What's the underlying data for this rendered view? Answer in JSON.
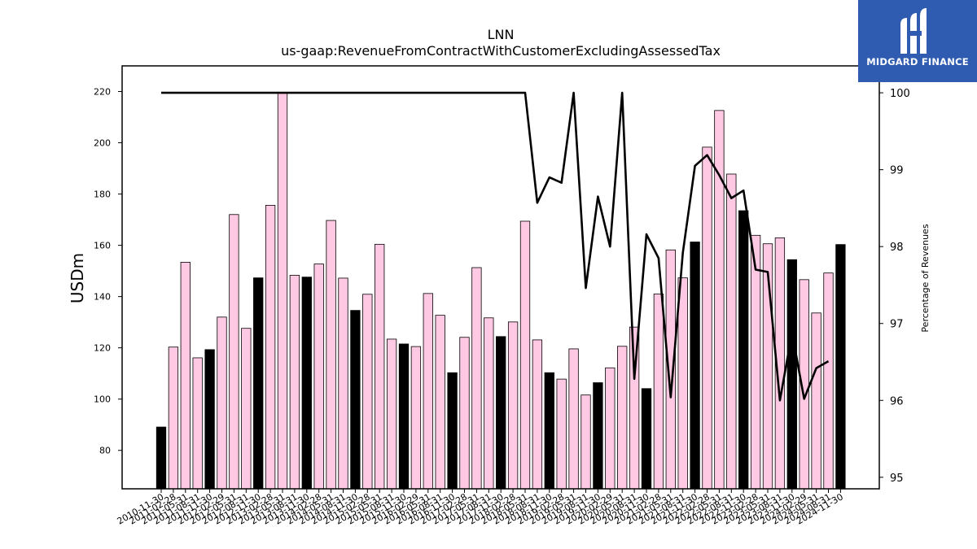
{
  "chart_data": {
    "type": "bar",
    "title": "LNN",
    "subtitle": "us-gaap:RevenueFromContractWithCustomerExcludingAssessedTax",
    "ylabel": "USDm",
    "y2label": "Percentage of Revenues",
    "ylim": [
      65,
      230
    ],
    "y2lim": [
      94.85,
      100.35
    ],
    "yticks": [
      80,
      100,
      120,
      140,
      160,
      180,
      200,
      220
    ],
    "y2ticks": [
      95,
      96,
      97,
      98,
      99,
      100
    ],
    "categories": [
      "2010-11-30",
      "2011-02-28",
      "2011-05-31",
      "2011-08-31",
      "2011-11-30",
      "2012-02-29",
      "2012-05-31",
      "2012-08-31",
      "2012-11-30",
      "2013-02-28",
      "2013-05-31",
      "2013-08-31",
      "2013-11-30",
      "2014-02-28",
      "2014-05-31",
      "2014-08-31",
      "2014-11-30",
      "2015-02-28",
      "2015-05-31",
      "2015-08-31",
      "2015-11-30",
      "2016-02-29",
      "2016-05-31",
      "2016-08-31",
      "2016-11-30",
      "2017-02-28",
      "2017-05-31",
      "2017-08-31",
      "2017-11-30",
      "2018-02-28",
      "2018-05-31",
      "2018-08-31",
      "2018-11-30",
      "2019-02-28",
      "2019-05-31",
      "2019-08-31",
      "2019-11-30",
      "2020-02-29",
      "2020-05-31",
      "2020-08-31",
      "2020-11-30",
      "2021-02-28",
      "2021-05-31",
      "2021-08-31",
      "2021-11-30",
      "2022-02-28",
      "2022-05-31",
      "2022-08-31",
      "2022-11-30",
      "2023-02-28",
      "2023-05-31",
      "2023-08-31",
      "2023-11-30",
      "2024-02-29",
      "2024-05-31",
      "2024-08-31",
      "2024-11-30"
    ],
    "series": [
      {
        "type": "bar",
        "values": [
          89.1,
          120.3,
          153.4,
          116.1,
          119.3,
          132.0,
          172.0,
          127.6,
          147.3,
          175.6,
          219.6,
          148.3,
          147.6,
          152.7,
          169.7,
          147.2,
          134.6,
          140.9,
          160.4,
          123.4,
          121.5,
          120.5,
          141.2,
          132.7,
          110.3,
          124.1,
          151.3,
          131.7,
          124.4,
          130.1,
          169.4,
          123.1,
          110.3,
          107.8,
          119.6,
          101.6,
          106.4,
          112.2,
          120.6,
          128.1,
          104.1,
          141.0,
          158.2,
          147.3,
          161.3,
          198.3,
          212.6,
          187.8,
          173.5,
          163.9,
          160.6,
          162.9,
          154.4,
          146.6,
          133.6,
          149.2,
          160.3
        ],
        "colors": [
          "#000000",
          "#ffc8e3"
        ],
        "quarter_end_highlight": "11-30"
      },
      {
        "type": "line",
        "axis": "right",
        "color": "#000000",
        "values": [
          100,
          100,
          100,
          100,
          100,
          100,
          100,
          100,
          100,
          100,
          100,
          100,
          100,
          100,
          100,
          100,
          100,
          100,
          100,
          100,
          100,
          100,
          100,
          100,
          100,
          100,
          100,
          100,
          100,
          100,
          100,
          98.57,
          98.9,
          98.83,
          100,
          97.46,
          98.65,
          98.0,
          100,
          96.28,
          98.16,
          97.85,
          96.04,
          97.92,
          99.05,
          99.19,
          98.93,
          98.63,
          98.73,
          97.7,
          97.67,
          96.0,
          96.88,
          96.02,
          96.42,
          96.51,
          null
        ]
      }
    ]
  },
  "logo": {
    "text": "MIDGARD FINANCE"
  }
}
